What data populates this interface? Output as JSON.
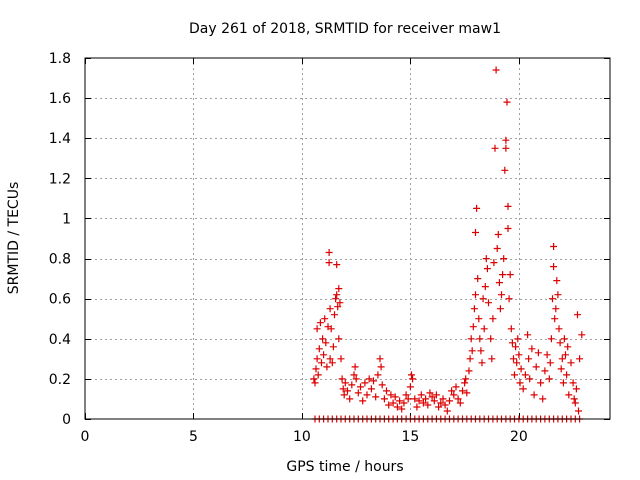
{
  "chart_data": {
    "type": "scatter",
    "title": "Day 261 of 2018, SRMTID for receiver maw1",
    "xlabel": "GPS time / hours",
    "ylabel": "SRMTID / TECUs",
    "xlim": [
      0,
      24.2
    ],
    "ylim": [
      0,
      1.8
    ],
    "xticks": [
      0,
      5,
      10,
      15,
      20
    ],
    "xtick_labels": [
      "0",
      "5",
      "10",
      "15",
      "20"
    ],
    "yticks": [
      0,
      0.2,
      0.4,
      0.6,
      0.8,
      1.0,
      1.2,
      1.4,
      1.6,
      1.8
    ],
    "ytick_labels": [
      "0",
      "0.2",
      "0.4",
      "0.6",
      "0.8",
      "1",
      "1.2",
      "1.4",
      "1.6",
      "1.8"
    ],
    "grid": true,
    "marker": "plus",
    "series": [
      {
        "name": "SRMTID",
        "color": "#dd0000",
        "points": [
          [
            10.55,
            0.2
          ],
          [
            10.6,
            0.18
          ],
          [
            10.65,
            0.25
          ],
          [
            10.7,
            0.3
          ],
          [
            10.7,
            0.45
          ],
          [
            10.75,
            0.22
          ],
          [
            10.8,
            0.35
          ],
          [
            10.85,
            0.48
          ],
          [
            10.9,
            0.28
          ],
          [
            10.95,
            0.4
          ],
          [
            11.0,
            0.32
          ],
          [
            11.05,
            0.5
          ],
          [
            11.1,
            0.38
          ],
          [
            11.15,
            0.26
          ],
          [
            11.2,
            0.46
          ],
          [
            11.25,
            0.78
          ],
          [
            11.25,
            0.83
          ],
          [
            11.3,
            0.55
          ],
          [
            11.3,
            0.3
          ],
          [
            11.35,
            0.45
          ],
          [
            11.4,
            0.28
          ],
          [
            11.45,
            0.36
          ],
          [
            11.5,
            0.52
          ],
          [
            11.55,
            0.6
          ],
          [
            11.6,
            0.62
          ],
          [
            11.6,
            0.77
          ],
          [
            11.65,
            0.56
          ],
          [
            11.7,
            0.65
          ],
          [
            11.7,
            0.4
          ],
          [
            11.75,
            0.58
          ],
          [
            11.8,
            0.3
          ],
          [
            11.85,
            0.2
          ],
          [
            11.9,
            0.15
          ],
          [
            11.95,
            0.12
          ],
          [
            12.0,
            0.18
          ],
          [
            12.1,
            0.14
          ],
          [
            12.2,
            0.1
          ],
          [
            12.3,
            0.17
          ],
          [
            12.4,
            0.22
          ],
          [
            12.45,
            0.26
          ],
          [
            12.5,
            0.2
          ],
          [
            12.6,
            0.13
          ],
          [
            12.7,
            0.16
          ],
          [
            12.8,
            0.09
          ],
          [
            12.9,
            0.18
          ],
          [
            13.0,
            0.12
          ],
          [
            13.1,
            0.2
          ],
          [
            13.2,
            0.15
          ],
          [
            13.3,
            0.19
          ],
          [
            13.4,
            0.11
          ],
          [
            13.5,
            0.22
          ],
          [
            13.6,
            0.3
          ],
          [
            13.65,
            0.26
          ],
          [
            13.7,
            0.17
          ],
          [
            13.8,
            0.1
          ],
          [
            13.9,
            0.14
          ],
          [
            14.0,
            0.07
          ],
          [
            14.1,
            0.12
          ],
          [
            14.2,
            0.08
          ],
          [
            14.3,
            0.11
          ],
          [
            14.4,
            0.06
          ],
          [
            14.5,
            0.09
          ],
          [
            14.6,
            0.05
          ],
          [
            14.7,
            0.08
          ],
          [
            14.8,
            0.12
          ],
          [
            14.9,
            0.1
          ],
          [
            15.0,
            0.16
          ],
          [
            15.05,
            0.22
          ],
          [
            15.1,
            0.2
          ],
          [
            15.2,
            0.1
          ],
          [
            15.3,
            0.06
          ],
          [
            15.4,
            0.09
          ],
          [
            15.5,
            0.12
          ],
          [
            15.6,
            0.08
          ],
          [
            15.7,
            0.1
          ],
          [
            15.8,
            0.07
          ],
          [
            15.9,
            0.13
          ],
          [
            16.0,
            0.11
          ],
          [
            16.1,
            0.09
          ],
          [
            16.2,
            0.12
          ],
          [
            16.3,
            0.06
          ],
          [
            16.4,
            0.08
          ],
          [
            16.5,
            0.1
          ],
          [
            16.6,
            0.07
          ],
          [
            16.7,
            0.04
          ],
          [
            16.8,
            0.09
          ],
          [
            16.9,
            0.14
          ],
          [
            17.0,
            0.12
          ],
          [
            17.1,
            0.16
          ],
          [
            17.2,
            0.1
          ],
          [
            17.3,
            0.08
          ],
          [
            17.4,
            0.14
          ],
          [
            17.5,
            0.18
          ],
          [
            17.55,
            0.2
          ],
          [
            17.6,
            0.13
          ],
          [
            17.7,
            0.24
          ],
          [
            17.75,
            0.3
          ],
          [
            17.8,
            0.4
          ],
          [
            17.85,
            0.34
          ],
          [
            17.9,
            0.46
          ],
          [
            17.95,
            0.55
          ],
          [
            18.0,
            0.62
          ],
          [
            18.0,
            0.93
          ],
          [
            18.05,
            1.05
          ],
          [
            18.1,
            0.7
          ],
          [
            18.15,
            0.5
          ],
          [
            18.2,
            0.4
          ],
          [
            18.25,
            0.34
          ],
          [
            18.3,
            0.28
          ],
          [
            18.35,
            0.6
          ],
          [
            18.4,
            0.45
          ],
          [
            18.45,
            0.66
          ],
          [
            18.5,
            0.8
          ],
          [
            18.55,
            0.75
          ],
          [
            18.6,
            0.58
          ],
          [
            18.7,
            0.4
          ],
          [
            18.75,
            0.3
          ],
          [
            18.8,
            0.5
          ],
          [
            18.85,
            0.78
          ],
          [
            18.9,
            1.35
          ],
          [
            18.95,
            1.74
          ],
          [
            19.0,
            0.85
          ],
          [
            19.05,
            0.92
          ],
          [
            19.1,
            0.68
          ],
          [
            19.15,
            0.55
          ],
          [
            19.2,
            0.62
          ],
          [
            19.25,
            0.72
          ],
          [
            19.3,
            0.8
          ],
          [
            19.35,
            1.24
          ],
          [
            19.4,
            1.35
          ],
          [
            19.4,
            1.39
          ],
          [
            19.45,
            1.58
          ],
          [
            19.5,
            1.06
          ],
          [
            19.5,
            0.95
          ],
          [
            19.55,
            0.6
          ],
          [
            19.6,
            0.72
          ],
          [
            19.65,
            0.45
          ],
          [
            19.7,
            0.38
          ],
          [
            19.75,
            0.3
          ],
          [
            19.8,
            0.22
          ],
          [
            19.85,
            0.36
          ],
          [
            19.9,
            0.28
          ],
          [
            19.95,
            0.4
          ],
          [
            20.0,
            0.32
          ],
          [
            20.05,
            0.18
          ],
          [
            20.1,
            0.25
          ],
          [
            20.2,
            0.15
          ],
          [
            20.3,
            0.22
          ],
          [
            20.4,
            0.42
          ],
          [
            20.45,
            0.3
          ],
          [
            20.5,
            0.2
          ],
          [
            20.6,
            0.35
          ],
          [
            20.7,
            0.12
          ],
          [
            20.8,
            0.26
          ],
          [
            20.9,
            0.33
          ],
          [
            21.0,
            0.18
          ],
          [
            21.1,
            0.1
          ],
          [
            21.2,
            0.24
          ],
          [
            21.3,
            0.32
          ],
          [
            21.4,
            0.2
          ],
          [
            21.45,
            0.28
          ],
          [
            21.5,
            0.4
          ],
          [
            21.55,
            0.6
          ],
          [
            21.6,
            0.76
          ],
          [
            21.6,
            0.86
          ],
          [
            21.65,
            0.5
          ],
          [
            21.7,
            0.55
          ],
          [
            21.75,
            0.69
          ],
          [
            21.8,
            0.62
          ],
          [
            21.85,
            0.45
          ],
          [
            21.9,
            0.38
          ],
          [
            21.95,
            0.25
          ],
          [
            22.0,
            0.3
          ],
          [
            22.05,
            0.18
          ],
          [
            22.1,
            0.4
          ],
          [
            22.15,
            0.32
          ],
          [
            22.2,
            0.22
          ],
          [
            22.25,
            0.36
          ],
          [
            22.3,
            0.12
          ],
          [
            22.4,
            0.28
          ],
          [
            22.5,
            0.18
          ],
          [
            22.55,
            0.1
          ],
          [
            22.6,
            0.08
          ],
          [
            22.65,
            0.15
          ],
          [
            22.7,
            0.52
          ],
          [
            22.75,
            0.04
          ],
          [
            22.8,
            0.3
          ],
          [
            22.9,
            0.42
          ],
          [
            10.6,
            0.0
          ],
          [
            10.8,
            0.0
          ],
          [
            11.0,
            0.0
          ],
          [
            11.2,
            0.0
          ],
          [
            11.4,
            0.0
          ],
          [
            11.6,
            0.0
          ],
          [
            11.8,
            0.0
          ],
          [
            12.0,
            0.0
          ],
          [
            12.2,
            0.0
          ],
          [
            12.4,
            0.0
          ],
          [
            12.6,
            0.0
          ],
          [
            12.8,
            0.0
          ],
          [
            13.0,
            0.0
          ],
          [
            13.2,
            0.0
          ],
          [
            13.4,
            0.0
          ],
          [
            13.6,
            0.0
          ],
          [
            13.8,
            0.0
          ],
          [
            14.0,
            0.0
          ],
          [
            14.2,
            0.0
          ],
          [
            14.4,
            0.0
          ],
          [
            14.6,
            0.0
          ],
          [
            14.8,
            0.0
          ],
          [
            15.0,
            0.0
          ],
          [
            15.2,
            0.0
          ],
          [
            15.4,
            0.0
          ],
          [
            15.6,
            0.0
          ],
          [
            15.8,
            0.0
          ],
          [
            16.0,
            0.0
          ],
          [
            16.2,
            0.0
          ],
          [
            16.4,
            0.0
          ],
          [
            16.6,
            0.0
          ],
          [
            16.8,
            0.0
          ],
          [
            17.0,
            0.0
          ],
          [
            17.2,
            0.0
          ],
          [
            17.4,
            0.0
          ],
          [
            17.6,
            0.0
          ],
          [
            17.8,
            0.0
          ],
          [
            18.0,
            0.0
          ],
          [
            18.2,
            0.0
          ],
          [
            18.4,
            0.0
          ],
          [
            18.6,
            0.0
          ],
          [
            18.8,
            0.0
          ],
          [
            19.0,
            0.0
          ],
          [
            19.2,
            0.0
          ],
          [
            19.4,
            0.0
          ],
          [
            19.6,
            0.0
          ],
          [
            19.8,
            0.0
          ],
          [
            20.0,
            0.0
          ],
          [
            20.2,
            0.0
          ],
          [
            20.4,
            0.0
          ],
          [
            20.6,
            0.0
          ],
          [
            20.8,
            0.0
          ],
          [
            21.0,
            0.0
          ],
          [
            21.2,
            0.0
          ],
          [
            21.4,
            0.0
          ],
          [
            21.6,
            0.0
          ],
          [
            21.8,
            0.0
          ],
          [
            22.0,
            0.0
          ],
          [
            22.2,
            0.0
          ],
          [
            22.4,
            0.0
          ],
          [
            22.6,
            0.0
          ],
          [
            22.8,
            0.0
          ]
        ]
      }
    ]
  }
}
